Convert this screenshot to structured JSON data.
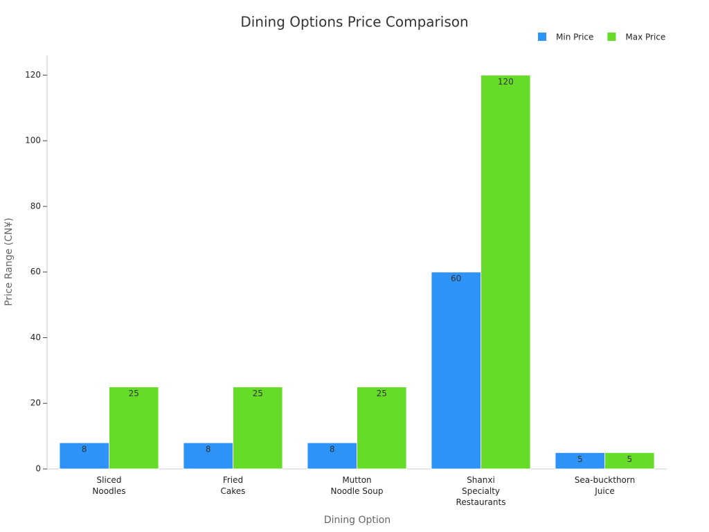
{
  "chart_data": {
    "type": "bar",
    "title": "Dining Options Price Comparison",
    "x_label": "Dining Option",
    "y_label": "Price Range (CN¥)",
    "categories": [
      [
        "Sliced",
        "Noodles"
      ],
      [
        "Fried",
        "Cakes"
      ],
      [
        "Mutton",
        "Noodle Soup"
      ],
      [
        "Shanxi",
        "Specialty",
        "Restaurants"
      ],
      [
        "Sea-buckthorn",
        "Juice"
      ]
    ],
    "series": [
      {
        "name": "Min Price",
        "color": "#2e93f6",
        "values": [
          8,
          8,
          8,
          60,
          5
        ]
      },
      {
        "name": "Max Price",
        "color": "#66dc29",
        "values": [
          25,
          25,
          25,
          120,
          5
        ]
      }
    ],
    "ylim": [
      0,
      126
    ],
    "yticks": [
      0,
      20,
      40,
      60,
      80,
      100,
      120
    ],
    "grid": false,
    "legend": "top-right"
  }
}
